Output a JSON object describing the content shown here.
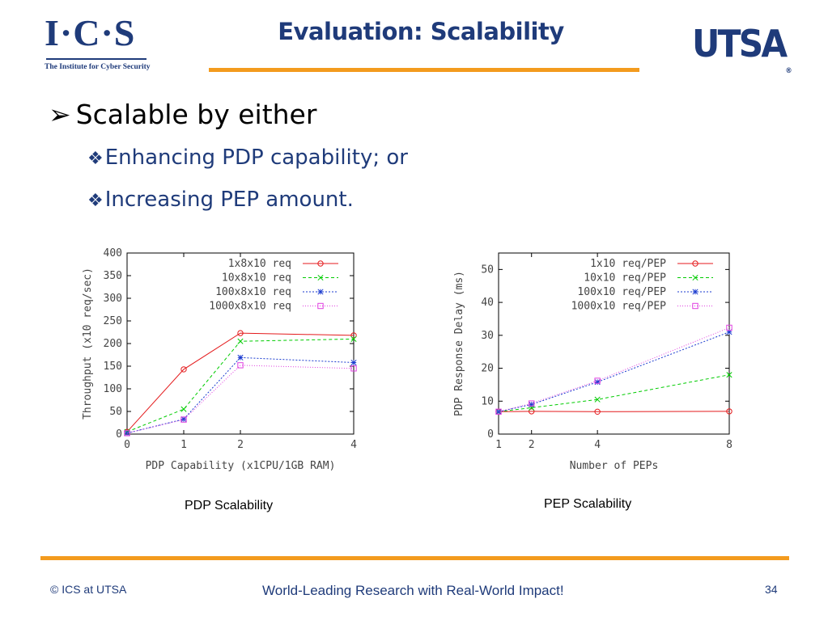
{
  "logos": {
    "ics_letters": "I·C·S",
    "ics_subtitle": "The Institute for Cyber Security",
    "utsa": "UTSA",
    "utsa_mark": "®"
  },
  "title": "Evaluation: Scalability",
  "bullets": {
    "main": "Scalable by either",
    "main_marker": "➢",
    "sub_marker": "❖",
    "sub": [
      "Enhancing PDP capability; or",
      "Increasing PEP amount."
    ]
  },
  "captions": {
    "left": "PDP Scalability",
    "right": "PEP Scalability"
  },
  "footer": {
    "copyright": "© ICS at UTSA",
    "tagline": "World-Leading Research with Real-World Impact!",
    "page": "34"
  },
  "colors": {
    "accent_orange": "#f39b1e",
    "brand_blue": "#1f3b7a",
    "series_red": "#e41a1c",
    "series_green": "#00cc00",
    "series_blue": "#1a3bcf",
    "series_magenta": "#e040e0"
  },
  "chart_data": [
    {
      "type": "line",
      "xlabel": "PDP Capability (x1CPU/1GB RAM)",
      "ylabel": "Throughput (x10 req/sec)",
      "x": [
        0,
        1,
        2,
        4
      ],
      "xticks": [
        0,
        1,
        2,
        4
      ],
      "xlim": [
        0,
        4
      ],
      "ylim": [
        0,
        400
      ],
      "yticks": [
        0,
        50,
        100,
        150,
        200,
        250,
        300,
        350,
        400
      ],
      "legend_position": "top-right",
      "series": [
        {
          "name": "1x8x10 req",
          "values": [
            5,
            143,
            223,
            218
          ],
          "color": "#e41a1c",
          "dash": "",
          "marker": "circle"
        },
        {
          "name": "10x8x10 req",
          "values": [
            5,
            55,
            205,
            210
          ],
          "color": "#00cc00",
          "dash": "4,3",
          "marker": "x"
        },
        {
          "name": "100x8x10 req",
          "values": [
            2,
            33,
            169,
            158
          ],
          "color": "#1a3bcf",
          "dash": "2,2",
          "marker": "star"
        },
        {
          "name": "1000x8x10 req",
          "values": [
            2,
            32,
            152,
            145
          ],
          "color": "#e040e0",
          "dash": "1,2",
          "marker": "square"
        }
      ]
    },
    {
      "type": "line",
      "xlabel": "Number of PEPs",
      "ylabel": "PDP Response Delay (ms)",
      "x": [
        1,
        2,
        4,
        8
      ],
      "xticks": [
        1,
        2,
        4,
        8
      ],
      "xlim": [
        1,
        8
      ],
      "ylim": [
        0,
        55
      ],
      "yticks": [
        0,
        10,
        20,
        30,
        40,
        50
      ],
      "legend_position": "top-right",
      "series": [
        {
          "name": "1x10 req/PEP",
          "values": [
            6.8,
            6.9,
            6.8,
            6.9
          ],
          "color": "#e41a1c",
          "dash": "",
          "marker": "circle"
        },
        {
          "name": "10x10 req/PEP",
          "values": [
            6.8,
            8.0,
            10.5,
            18.0
          ],
          "color": "#00cc00",
          "dash": "4,3",
          "marker": "x"
        },
        {
          "name": "100x10 req/PEP",
          "values": [
            6.8,
            9.0,
            15.8,
            31.0
          ],
          "color": "#1a3bcf",
          "dash": "2,2",
          "marker": "star"
        },
        {
          "name": "1000x10 req/PEP",
          "values": [
            6.8,
            9.3,
            16.2,
            32.3
          ],
          "color": "#e040e0",
          "dash": "1,2",
          "marker": "square"
        }
      ]
    }
  ]
}
